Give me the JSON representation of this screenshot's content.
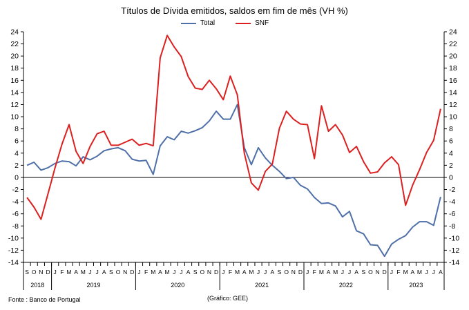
{
  "chart_data": {
    "type": "line",
    "title": "Títulos de Dívida emitidos, saldos em fim de mês  (VH %)",
    "ylim": [
      -14,
      24
    ],
    "yticks": [
      -14,
      -12,
      -10,
      -8,
      -6,
      -4,
      -2,
      0,
      2,
      4,
      6,
      8,
      10,
      12,
      14,
      16,
      18,
      20,
      22,
      24
    ],
    "month_labels": [
      "S",
      "O",
      "N",
      "D",
      "J",
      "F",
      "M",
      "A",
      "M",
      "J",
      "J",
      "A",
      "S",
      "O",
      "N",
      "D",
      "J",
      "F",
      "M",
      "A",
      "M",
      "J",
      "J",
      "A",
      "S",
      "O",
      "N",
      "D",
      "J",
      "F",
      "M",
      "A",
      "M",
      "J",
      "J",
      "A",
      "S",
      "O",
      "N",
      "D",
      "J",
      "F",
      "M",
      "A",
      "M",
      "J",
      "J",
      "A",
      "S",
      "O",
      "N",
      "D",
      "J",
      "F",
      "M",
      "A",
      "M",
      "J",
      "J",
      "A"
    ],
    "years": [
      {
        "label": "2018",
        "start": 0,
        "end": 3
      },
      {
        "label": "2019",
        "start": 4,
        "end": 15
      },
      {
        "label": "2020",
        "start": 16,
        "end": 27
      },
      {
        "label": "2021",
        "start": 28,
        "end": 39
      },
      {
        "label": "2022",
        "start": 40,
        "end": 51
      },
      {
        "label": "2023",
        "start": 52,
        "end": 59
      }
    ],
    "series": [
      {
        "name": "Total",
        "color": "#4F6FA8",
        "values": [
          2.0,
          2.5,
          1.2,
          1.6,
          2.3,
          2.7,
          2.6,
          1.9,
          3.4,
          2.9,
          3.5,
          4.4,
          4.7,
          4.9,
          4.4,
          3.0,
          2.7,
          2.8,
          0.5,
          5.2,
          6.7,
          6.2,
          7.6,
          7.3,
          7.7,
          8.2,
          9.3,
          10.9,
          9.6,
          9.6,
          12.0,
          4.9,
          2.1,
          4.9,
          3.2,
          2.0,
          1.0,
          -0.2,
          0.0,
          -1.3,
          -1.9,
          -3.3,
          -4.3,
          -4.2,
          -4.7,
          -6.5,
          -5.6,
          -8.8,
          -9.3,
          -11.1,
          -11.2,
          -13.0,
          -11.0,
          -10.2,
          -9.6,
          -8.2,
          -7.3,
          -7.3,
          -7.9,
          -3.2
        ]
      },
      {
        "name": "SNF",
        "color": "#DC1F1F",
        "values": [
          -3.3,
          -4.9,
          -6.9,
          -2.7,
          1.6,
          5.5,
          8.7,
          4.3,
          2.3,
          5.1,
          7.2,
          7.6,
          5.3,
          5.3,
          5.8,
          6.3,
          5.3,
          5.6,
          5.2,
          19.7,
          23.4,
          21.5,
          19.9,
          16.6,
          14.7,
          14.5,
          16.0,
          14.6,
          12.8,
          16.7,
          13.6,
          4.0,
          -0.9,
          -2.1,
          1.0,
          2.2,
          8.1,
          10.9,
          9.6,
          8.8,
          8.7,
          3.1,
          11.8,
          7.6,
          8.7,
          7.0,
          4.1,
          5.1,
          2.6,
          0.7,
          0.9,
          2.4,
          3.4,
          2.1,
          -4.6,
          -1.3,
          1.3,
          4.1,
          6.1,
          11.3
        ]
      }
    ],
    "legend_position": "top-center"
  },
  "footer": {
    "source": "Fonte : Banco de Portugal",
    "credit": "(Gráfico: GEE)"
  }
}
